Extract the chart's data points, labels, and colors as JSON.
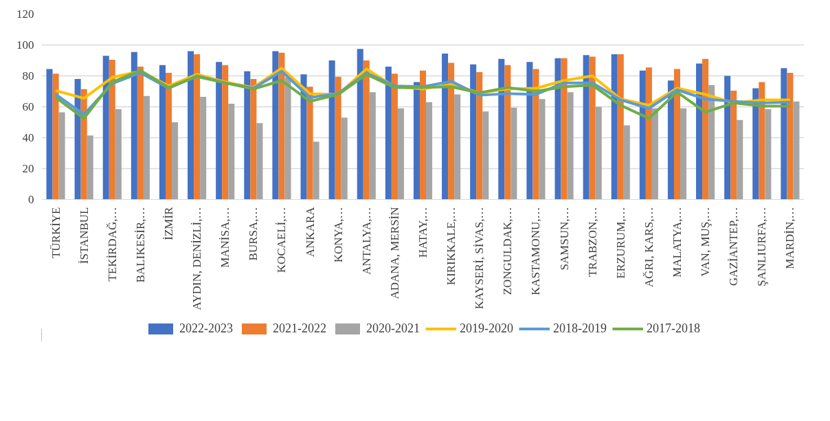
{
  "chart_data": {
    "type": "bar",
    "categories": [
      "TÜRKİYE",
      "İSTANBUL",
      "TEKİRDAĞ,…",
      "BALIKESİR,…",
      "İZMİR",
      "AYDIN, DENİZLİ,…",
      "MANİSA,…",
      "BURSA,…",
      "KOCAELİ,…",
      "ANKARA",
      "KONYA,…",
      "ANTALYA,…",
      "ADANA, MERSİN",
      "HATAY,…",
      "KIRIKKALE,…",
      "KAYSERİ, SİVAS,…",
      "ZONGULDAK,…",
      "KASTAMONU,…",
      "SAMSUN,…",
      "TRABZON,…",
      "ERZURUM,…",
      "AĞRI, KARS,…",
      "MALATYA,…",
      "VAN, MUŞ,…",
      "GAZİANTEP,…",
      "ŞANLIURFA,…",
      "MARDİN,…"
    ],
    "series": [
      {
        "name": "2022-2023",
        "type": "bar",
        "color": "#4472c4",
        "values": [
          84.5,
          78,
          93,
          95.5,
          87,
          96,
          89,
          83,
          96,
          81,
          90,
          97.5,
          86,
          76,
          94.5,
          87.5,
          91,
          89,
          91.5,
          93.5,
          94,
          83.5,
          77,
          88,
          80,
          72,
          85
        ]
      },
      {
        "name": "2021-2022",
        "type": "bar",
        "color": "#ed7d31",
        "values": [
          81.5,
          71.5,
          90.5,
          86,
          82,
          94,
          87,
          78,
          95,
          73,
          79.5,
          90,
          81.5,
          83.5,
          88.5,
          82.5,
          87,
          84.5,
          91.5,
          92.5,
          94,
          85.5,
          84.5,
          91,
          70.5,
          76,
          82
        ]
      },
      {
        "name": "2020-2021",
        "type": "bar",
        "color": "#a5a5a5",
        "values": [
          56.5,
          41.5,
          58.5,
          67,
          50,
          66.5,
          62,
          49.5,
          79,
          37.5,
          53,
          69.5,
          59,
          63,
          68,
          57,
          59.5,
          65,
          69.5,
          60,
          48,
          59,
          59,
          74,
          51.5,
          58.5,
          63.5
        ]
      },
      {
        "name": "2019-2020",
        "type": "line",
        "color": "#ffc000",
        "values": [
          70.5,
          65.5,
          79,
          83,
          73.5,
          81,
          76,
          72.5,
          85,
          68.5,
          68,
          84.5,
          73,
          71.5,
          74.5,
          69,
          71.5,
          72,
          77,
          80,
          65,
          61,
          72,
          68,
          62.5,
          64.5,
          64.5
        ]
      },
      {
        "name": "2018-2019",
        "type": "line",
        "color": "#5b9bd5",
        "values": [
          68,
          55,
          75,
          82,
          72,
          80,
          75.5,
          72,
          83,
          66,
          68.5,
          82,
          73.5,
          73,
          76.5,
          67.5,
          68.5,
          68,
          75.5,
          75.5,
          64.5,
          59,
          71,
          65,
          63.5,
          62.5,
          63
        ]
      },
      {
        "name": "2017-2018",
        "type": "line",
        "color": "#70ad47",
        "values": [
          66,
          52.5,
          76,
          83.5,
          72.5,
          79.5,
          75.5,
          71.5,
          77,
          63.5,
          68,
          81,
          72.5,
          72.5,
          73,
          69,
          72.5,
          70,
          73,
          74,
          61,
          52.5,
          69.5,
          56.5,
          62.5,
          60.5,
          60.5
        ]
      }
    ],
    "ylim": [
      0,
      120
    ],
    "yticks": [
      0,
      20,
      40,
      60,
      80,
      100,
      120
    ],
    "grid": "y",
    "legend": "bottom"
  }
}
